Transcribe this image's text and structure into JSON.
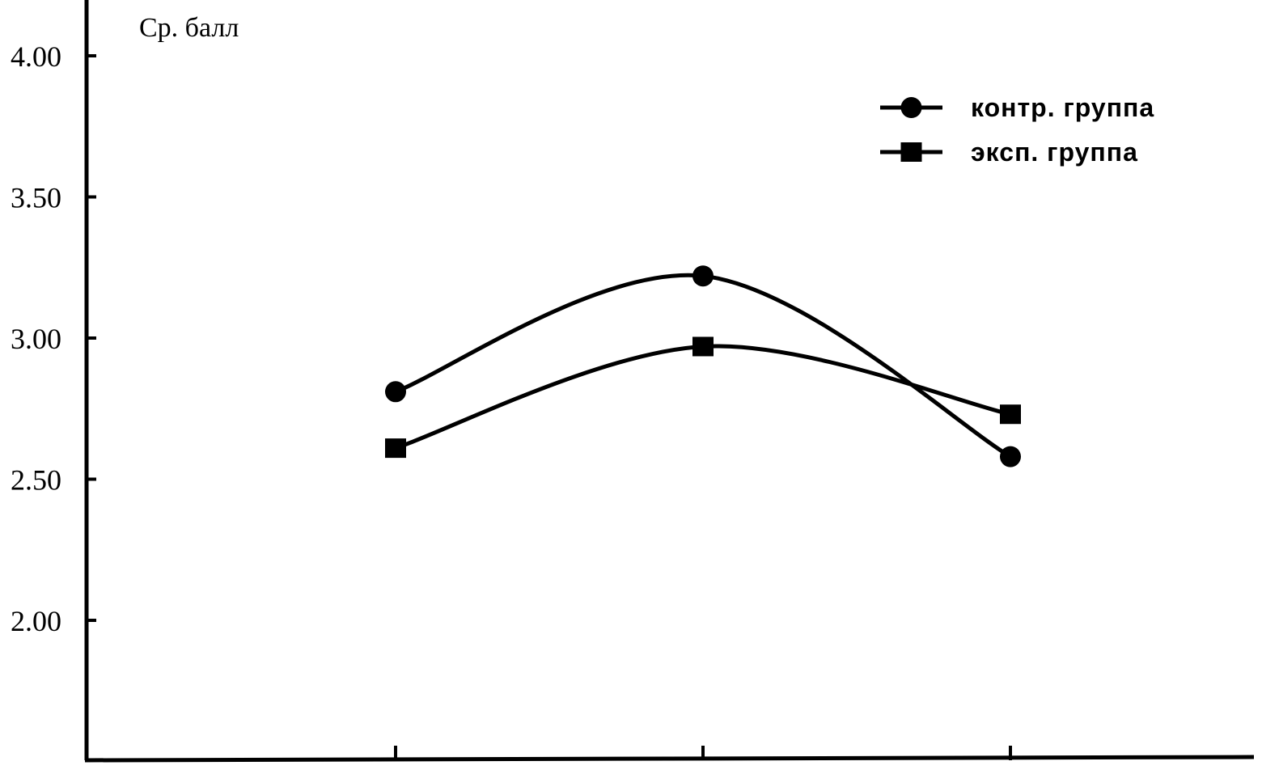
{
  "chart_data": {
    "type": "line",
    "title": "",
    "ylabel": "Ср. балл",
    "xlabel": "",
    "x": [
      1,
      2,
      3
    ],
    "ylim": [
      1.5,
      4.2
    ],
    "yticks": [
      2.0,
      2.5,
      3.0,
      3.5,
      4.0
    ],
    "ytick_labels": [
      "2.00",
      "2.50",
      "3.00",
      "3.50",
      "4.00"
    ],
    "grid": false,
    "legend_position": "top-right",
    "curve": "smooth",
    "series": [
      {
        "name": "контр. группа",
        "marker": "circle",
        "color": "#000000",
        "values": [
          2.81,
          3.22,
          2.58
        ]
      },
      {
        "name": "эксп. группа",
        "marker": "square",
        "color": "#000000",
        "values": [
          2.61,
          2.97,
          2.73
        ]
      }
    ]
  }
}
